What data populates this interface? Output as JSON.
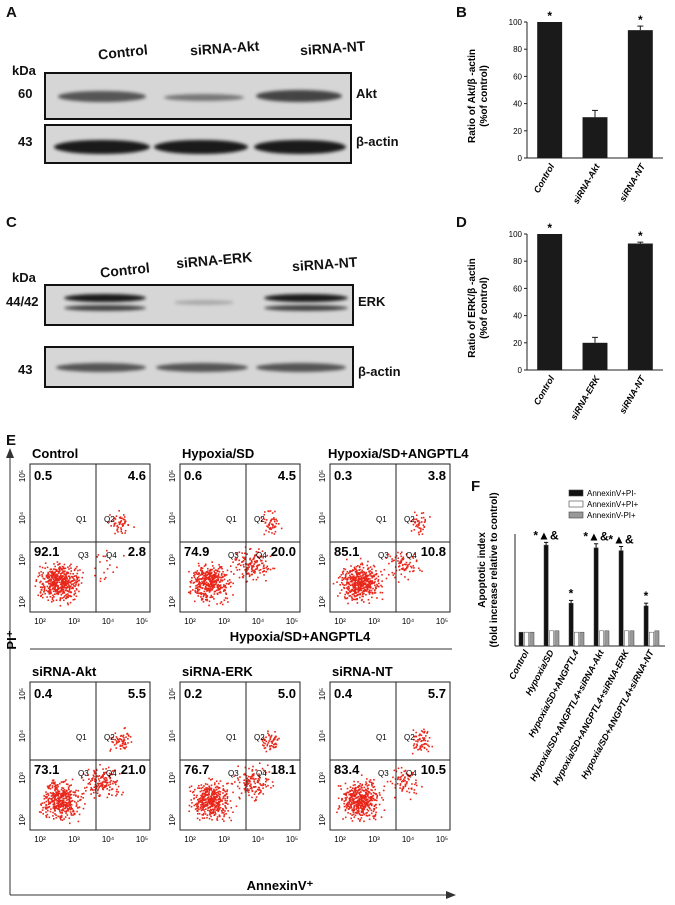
{
  "panelA": {
    "label": "A",
    "kda": "kDa",
    "lanes": [
      "Control",
      "siRNA-Akt",
      "siRNA-NT"
    ],
    "rows": [
      {
        "mw": "60",
        "protein": "Akt"
      },
      {
        "mw": "43",
        "protein": "β-actin"
      }
    ]
  },
  "panelB": {
    "label": "B",
    "chart_data": {
      "type": "bar",
      "categories": [
        "Control",
        "siRNA-Akt",
        "siRNA-NT"
      ],
      "values": [
        100,
        30,
        94
      ],
      "errors": [
        0,
        5,
        3
      ],
      "ylabel": "Ratio of Akt/β -actin\n(%of control)",
      "ylim": [
        0,
        100
      ],
      "yticks": [
        "0",
        "20",
        "40",
        "60",
        "80",
        "100"
      ],
      "annotations": [
        "*",
        "",
        "*"
      ]
    }
  },
  "panelC": {
    "label": "C",
    "kda": "kDa",
    "lanes": [
      "Control",
      "siRNA-ERK",
      "siRNA-NT"
    ],
    "rows": [
      {
        "mw": "44/42",
        "protein": "ERK"
      },
      {
        "mw": "43",
        "protein": "β-actin"
      }
    ]
  },
  "panelD": {
    "label": "D",
    "chart_data": {
      "type": "bar",
      "categories": [
        "Control",
        "siRNA-ERK",
        "siRNA-NT"
      ],
      "values": [
        100,
        20,
        93
      ],
      "errors": [
        0,
        4,
        1
      ],
      "ylabel": "Ratio of ERK/β -actin\n(%of control)",
      "ylim": [
        0,
        100
      ],
      "yticks": [
        "0",
        "20",
        "40",
        "60",
        "80",
        "100"
      ],
      "annotations": [
        "*",
        "",
        "*"
      ]
    }
  },
  "panelE": {
    "label": "E",
    "yaxis": "PI⁺",
    "xaxis": "AnnexinV⁺",
    "group_label": "Hypoxia/SD+ANGPTL4",
    "quadrants": [
      "Q1",
      "Q2",
      "Q3",
      "Q4"
    ],
    "plots": [
      {
        "title": "Control",
        "q1": "0.5",
        "q2": "4.6",
        "q3": "92.1",
        "q4": "2.8"
      },
      {
        "title": "Hypoxia/SD",
        "q1": "0.6",
        "q2": "4.5",
        "q3": "74.9",
        "q4": "20.0"
      },
      {
        "title": "Hypoxia/SD+ANGPTL4",
        "q1": "0.3",
        "q2": "3.8",
        "q3": "85.1",
        "q4": "10.8"
      },
      {
        "title": "siRNA-Akt",
        "q1": "0.4",
        "q2": "5.5",
        "q3": "73.1",
        "q4": "21.0"
      },
      {
        "title": "siRNA-ERK",
        "q1": "0.2",
        "q2": "5.0",
        "q3": "76.7",
        "q4": "18.1"
      },
      {
        "title": "siRNA-NT",
        "q1": "0.4",
        "q2": "5.7",
        "q3": "83.4",
        "q4": "10.5"
      }
    ]
  },
  "panelF": {
    "label": "F",
    "chart_data": {
      "type": "bar",
      "ylabel": "Apoptotic index\n(fold increase relative to control)",
      "categories": [
        "Control",
        "Hypoxia/SD",
        "Hypoxia/SD+ANGPTL4",
        "Hypoxia/SD+ANGPTL4+siRNA-Akt",
        "Hypoxia/SD+ANGPTL4+siRNA-ERK",
        "Hypoxia/SD+ANGPTL4+siRNA-NT"
      ],
      "ylim": [
        0,
        11
      ],
      "series": [
        {
          "name": "AnnexinV+PI-",
          "color": "#111111",
          "values": [
            1.0,
            7.3,
            3.1,
            7.1,
            6.9,
            2.9
          ],
          "errors": [
            0,
            0.2,
            0.2,
            0.3,
            0.3,
            0.2
          ]
        },
        {
          "name": "AnnexinV+PI+",
          "color": "#ffffff",
          "values": [
            1.0,
            1.1,
            1.0,
            1.1,
            1.1,
            1.0
          ],
          "errors": [
            0,
            0,
            0,
            0,
            0,
            0
          ]
        },
        {
          "name": "AnnexinV-PI+",
          "color": "#999999",
          "values": [
            1.0,
            1.1,
            1.0,
            1.1,
            1.1,
            1.1
          ],
          "errors": [
            0,
            0,
            0,
            0,
            0,
            0
          ]
        }
      ],
      "annotations": [
        "",
        "*▲&",
        "*",
        "*▲&",
        "*▲&",
        "*"
      ],
      "legend_position": "top-right"
    }
  }
}
